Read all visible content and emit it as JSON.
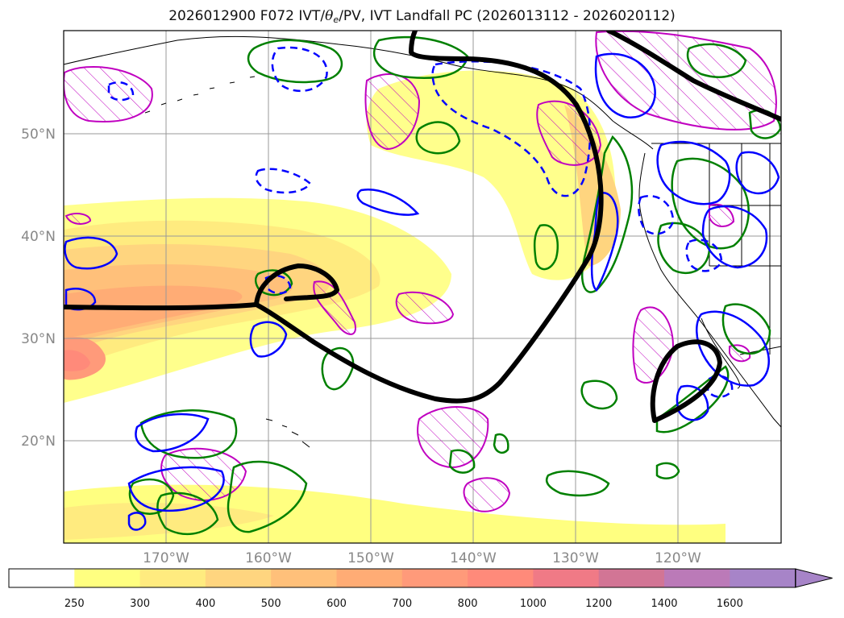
{
  "title": {
    "prefix": "2026012900 F072 IVT/",
    "theta": "θ",
    "theta_sub": "e",
    "suffix": "/PV, IVT Landfall PC (2026013112 - 2026020112)"
  },
  "map": {
    "lon_range": [
      -180,
      -110
    ],
    "lat_range": [
      10,
      60
    ],
    "lat_labels": [
      "20°N",
      "30°N",
      "40°N",
      "50°N"
    ],
    "lon_labels": [
      "170°W",
      "160°W",
      "150°W",
      "140°W",
      "130°W",
      "120°W"
    ]
  },
  "colorbar": {
    "levels": [
      "250",
      "300",
      "400",
      "500",
      "600",
      "700",
      "800",
      "1000",
      "1200",
      "1400",
      "1600"
    ],
    "colors": [
      "#ffffff",
      "#ffff80",
      "#ffeb7f",
      "#ffd57f",
      "#ffc07a",
      "#ffac75",
      "#ff9a7a",
      "#ff8a7a",
      "#f07a86",
      "#d27595",
      "#bb7ab8",
      "#a784c8"
    ]
  },
  "contour_colors": {
    "landfall_pc": "#000000",
    "theta_e": "#0000ff",
    "pv": "#008000",
    "hatched": "#c000c0"
  }
}
